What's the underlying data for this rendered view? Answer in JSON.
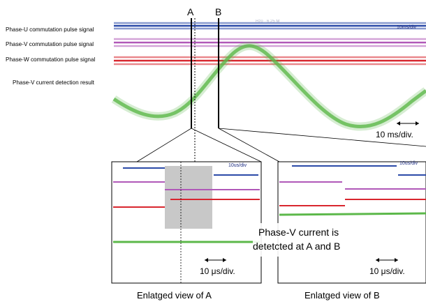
{
  "labels": {
    "phase_u": "Phase-U commutation pulse signal",
    "phase_v": "Phase-V commutation pulse signal",
    "phase_w": "Phase-W commutation pulse signal",
    "phase_v_current": "Phase-V current detection result",
    "marker_a": "A",
    "marker_b": "B",
    "scale_main": "10 ms/div.",
    "scale_zoom_a": "10 μs/div.",
    "scale_zoom_b": "10 μs/div.",
    "annotation_line1": "Phase-V current is",
    "annotation_line2": "detetcted at A and B",
    "caption_a": "Enlatged view of A",
    "caption_b": "Enlatged view of B"
  },
  "scope_readouts": {
    "main_timebase": "10ms/div",
    "zoom_a_timebase": "10us/div",
    "zoom_b_timebase": "10us/div"
  },
  "colors": {
    "phase_u": "#2b4aa8",
    "phase_v": "#b058b8",
    "phase_w": "#d8262e",
    "current": "#5cb84a",
    "zoom_highlight": "#9a9a9a"
  }
}
